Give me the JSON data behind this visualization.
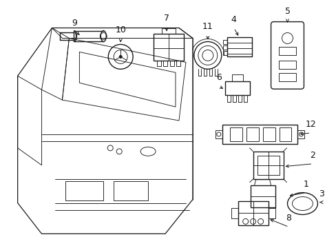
{
  "background_color": "#ffffff",
  "line_color": "#1a1a1a",
  "label_color": "#111111",
  "figsize": [
    4.89,
    3.6
  ],
  "dpi": 100,
  "lw_main": 1.0,
  "lw_thin": 0.65,
  "lw_body": 0.9
}
